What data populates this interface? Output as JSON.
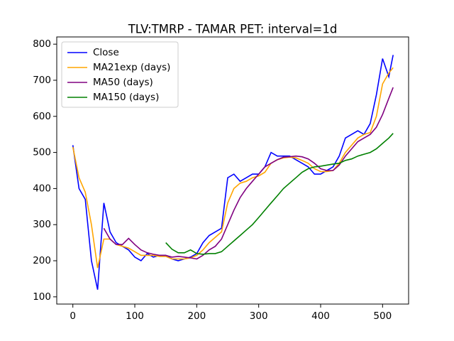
{
  "chart_data": {
    "type": "line",
    "title": "TLV:TMRP - TAMAR PET: interval=1d",
    "x": [
      0,
      10,
      20,
      30,
      40,
      50,
      60,
      70,
      80,
      90,
      100,
      110,
      120,
      130,
      140,
      150,
      160,
      170,
      180,
      190,
      200,
      210,
      220,
      230,
      240,
      250,
      260,
      270,
      280,
      290,
      300,
      310,
      320,
      330,
      340,
      350,
      360,
      370,
      380,
      390,
      400,
      410,
      420,
      430,
      440,
      450,
      460,
      470,
      480,
      490,
      500,
      510,
      517
    ],
    "series": [
      {
        "name": "Close",
        "color": "#0000ff",
        "values": [
          520,
          400,
          370,
          200,
          120,
          360,
          280,
          250,
          240,
          230,
          210,
          200,
          220,
          210,
          215,
          215,
          205,
          200,
          205,
          210,
          220,
          250,
          270,
          280,
          290,
          430,
          440,
          420,
          430,
          440,
          440,
          460,
          500,
          490,
          490,
          490,
          480,
          470,
          460,
          440,
          440,
          450,
          460,
          490,
          540,
          550,
          560,
          550,
          580,
          660,
          760,
          710,
          770
        ]
      },
      {
        "name": "MA21exp (days)",
        "color": "#ffa500",
        "values": [
          515,
          430,
          390,
          300,
          180,
          260,
          260,
          245,
          240,
          235,
          225,
          215,
          215,
          215,
          212,
          212,
          205,
          205,
          205,
          208,
          215,
          230,
          250,
          265,
          280,
          360,
          400,
          415,
          420,
          430,
          435,
          445,
          470,
          480,
          485,
          487,
          485,
          478,
          470,
          455,
          447,
          447,
          450,
          470,
          500,
          520,
          540,
          550,
          555,
          600,
          690,
          720,
          735
        ]
      },
      {
        "name": "MA50 (days)",
        "color": "#800080",
        "values": [
          null,
          null,
          null,
          null,
          null,
          290,
          260,
          245,
          245,
          262,
          245,
          230,
          222,
          218,
          215,
          215,
          210,
          212,
          210,
          208,
          205,
          215,
          230,
          240,
          260,
          300,
          340,
          375,
          400,
          420,
          440,
          460,
          470,
          480,
          487,
          488,
          490,
          488,
          482,
          470,
          455,
          450,
          450,
          465,
          490,
          510,
          530,
          540,
          550,
          570,
          605,
          650,
          680
        ]
      },
      {
        "name": "MA150 (days)",
        "color": "#008000",
        "values": [
          null,
          null,
          null,
          null,
          null,
          null,
          null,
          null,
          null,
          null,
          null,
          null,
          null,
          null,
          null,
          250,
          232,
          222,
          222,
          230,
          220,
          218,
          220,
          220,
          225,
          240,
          255,
          270,
          285,
          300,
          320,
          340,
          360,
          380,
          400,
          415,
          430,
          445,
          455,
          460,
          462,
          465,
          468,
          470,
          478,
          482,
          490,
          495,
          500,
          510,
          525,
          540,
          553
        ]
      }
    ],
    "xlim": [
      -26,
      542
    ],
    "ylim": [
      80,
      820
    ],
    "xticks": [
      0,
      100,
      200,
      300,
      400,
      500
    ],
    "yticks": [
      100,
      200,
      300,
      400,
      500,
      600,
      700,
      800
    ],
    "legend": "upper left"
  }
}
